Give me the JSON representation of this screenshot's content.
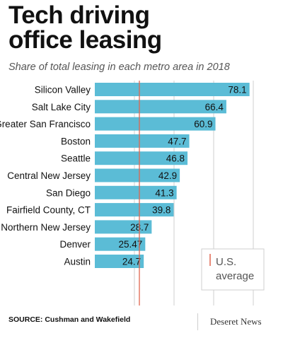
{
  "header": {
    "title_line1": "Tech driving",
    "title_line2": "office leasing",
    "subtitle": "Share of total leasing in each metro area in 2018"
  },
  "footer": {
    "source": "SOURCE: Cushman and Wakefield",
    "credit": "Deseret News"
  },
  "colors": {
    "bar": "#5bbcd6",
    "average_line": "#e0654f",
    "grid": "#cfcfcf",
    "label": "#111111"
  },
  "chart_data": {
    "type": "bar",
    "orientation": "horizontal",
    "title": "Tech driving office leasing",
    "subtitle": "Share of total leasing in each metro area in 2018",
    "categories": [
      "Silicon Valley",
      "Salt Lake City",
      "Greater San Francisco",
      "Boston",
      "Seattle",
      "Central New Jersey",
      "San Diego",
      "Fairfield County, CT",
      "Northern New Jersey",
      "Denver",
      "Austin"
    ],
    "values": [
      78.1,
      66.4,
      60.9,
      47.7,
      46.8,
      42.9,
      41.3,
      39.8,
      28.7,
      25.47,
      24.7
    ],
    "value_labels": [
      "78.1",
      "66.4",
      "60.9",
      "47.7",
      "46.8",
      "42.9",
      "41.3",
      "39.8",
      "28.7",
      "25.47",
      "24.7"
    ],
    "xlim": [
      0,
      85
    ],
    "grid": true,
    "reference_line": {
      "name": "U.S. average",
      "label_line1": "U.S.",
      "label_line2": "average",
      "value": 22.5
    },
    "legend_position": "bottom-right"
  }
}
